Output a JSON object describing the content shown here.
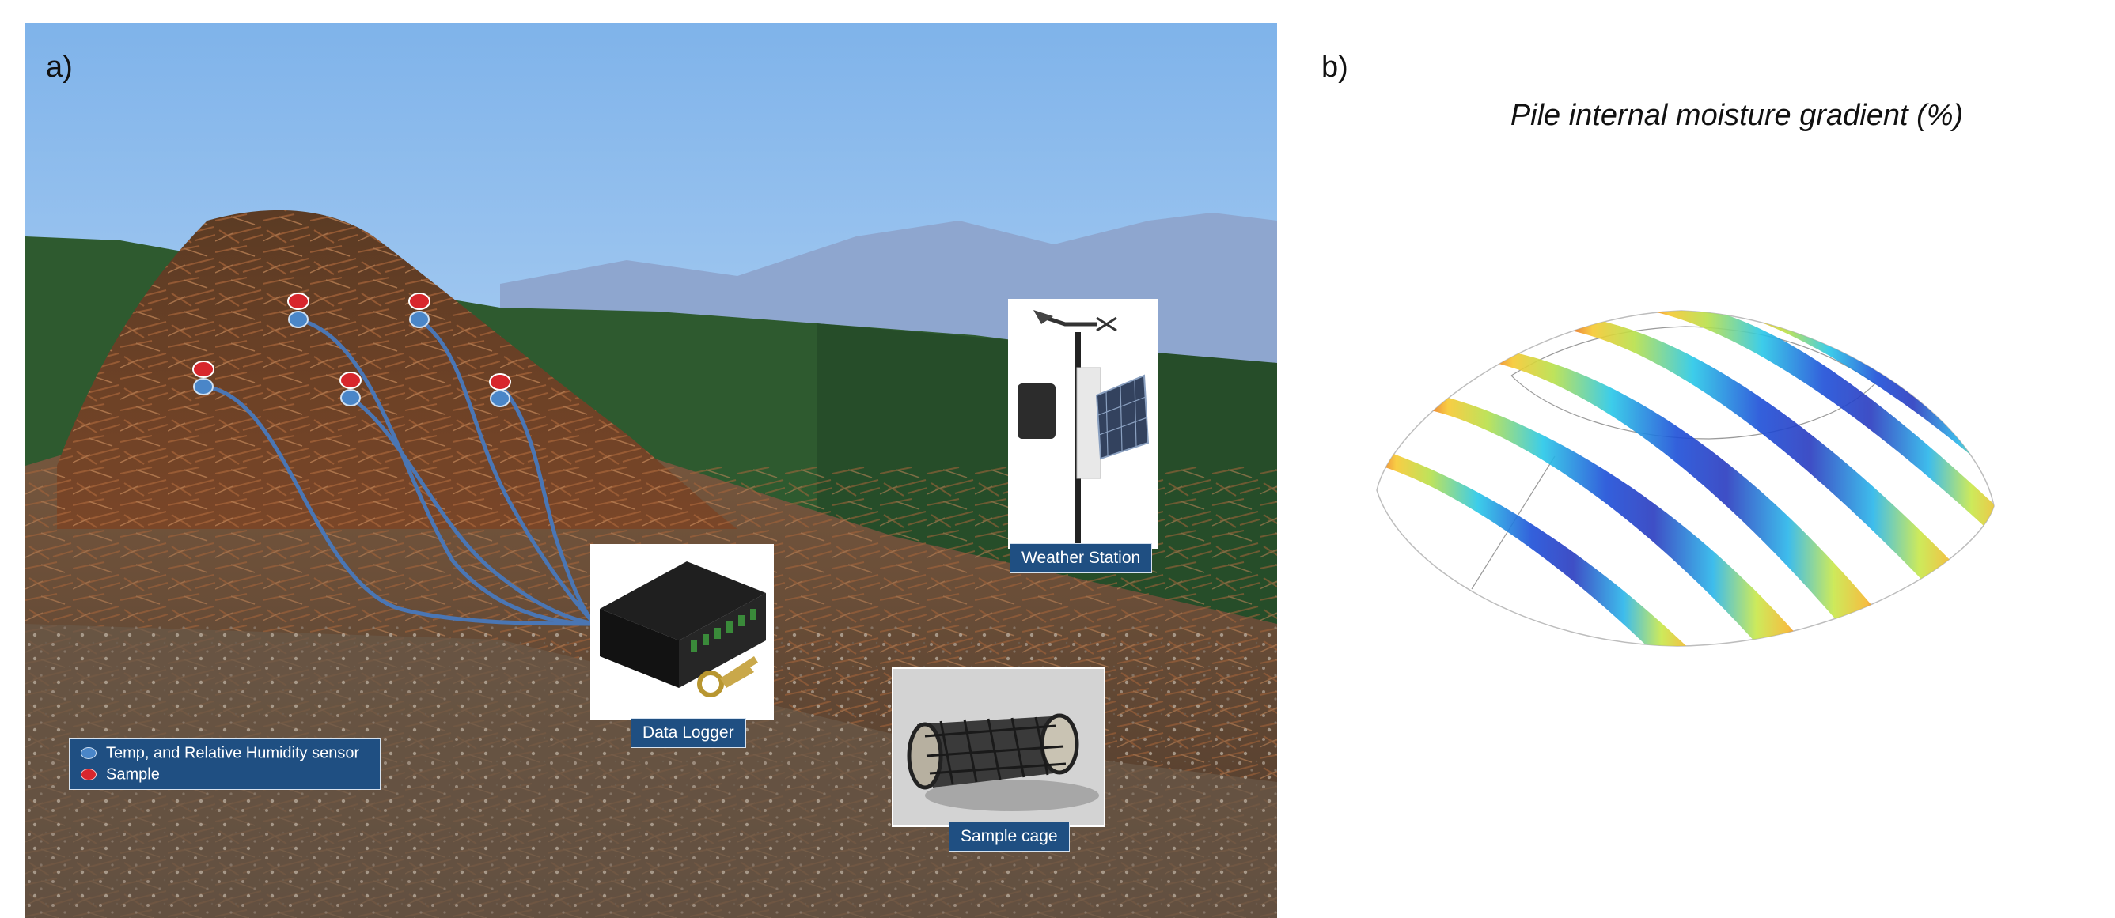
{
  "panels": {
    "a_label": "a)",
    "b_label": "b)"
  },
  "photo_labels": {
    "weather_station": "Weather Station",
    "data_logger": "Data Logger",
    "sample_cage": "Sample cage"
  },
  "legend": {
    "items": [
      {
        "label": "Temp, and Relative Humidity sensor",
        "color": "#4a86c8"
      },
      {
        "label": "Sample",
        "color": "#d8262c"
      }
    ]
  },
  "chart": {
    "title": "Pile internal moisture gradient (%)"
  },
  "colors": {
    "label_box": "#1f4f82",
    "cable": "#4a76b4",
    "sensor": "#4a86c8",
    "sample": "#d8262c"
  }
}
